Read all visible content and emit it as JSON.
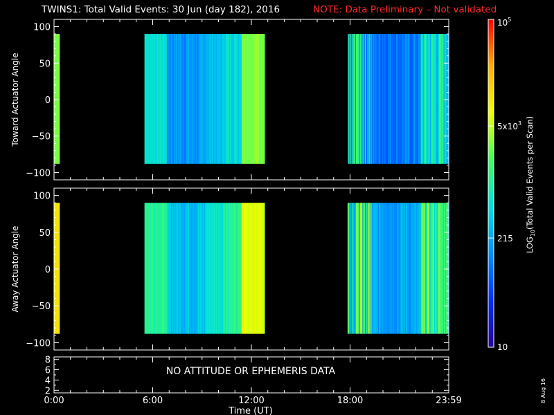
{
  "title": {
    "main": "TWINS1: Total Valid Events: 30 Jun (day 182), 2016",
    "note": "NOTE: Data Preliminary – Not validated",
    "note_color": "#ff2a2a"
  },
  "message": "NO ATTITUDE OR EPHEMERIS DATA",
  "footer_date": "8 Aug 16",
  "colors": {
    "background": "#000000",
    "axes": "#ffffff",
    "note": "#ff2a2a"
  },
  "chart_data": [
    {
      "type": "heatmap",
      "panel": "toward",
      "ylabel": "Toward Actuator Angle",
      "ylim": [
        -110,
        110
      ],
      "yticks": [
        100,
        50,
        0,
        -50,
        -100
      ],
      "ytick_labels": [
        "100",
        "50",
        "0",
        "−50",
        "−100"
      ],
      "angle_range": [
        -88,
        90
      ],
      "data_blocks": [
        {
          "start_hour": 0.0,
          "end_hour": 0.33,
          "level": 0.62
        },
        {
          "start_hour": 5.5,
          "end_hour": 12.8,
          "pattern": "mid_day"
        },
        {
          "start_hour": 17.85,
          "end_hour": 24.0,
          "pattern": "evening"
        }
      ]
    },
    {
      "type": "heatmap",
      "panel": "away",
      "ylabel": "Away Actuator Angle",
      "ylim": [
        -110,
        110
      ],
      "yticks": [
        100,
        50,
        0,
        -50,
        -100
      ],
      "ytick_labels": [
        "100",
        "50",
        "0",
        "−50",
        "−100"
      ],
      "angle_range": [
        -88,
        90
      ],
      "data_blocks": [
        {
          "start_hour": 0.0,
          "end_hour": 0.33,
          "level": 0.76
        },
        {
          "start_hour": 5.5,
          "end_hour": 12.8,
          "pattern": "mid_day"
        },
        {
          "start_hour": 17.85,
          "end_hour": 24.0,
          "pattern": "evening"
        }
      ]
    },
    {
      "type": "line",
      "panel": "ephemeris",
      "ylim": [
        1.5,
        8.5
      ],
      "yticks": [
        8,
        6,
        4,
        2
      ],
      "ytick_labels": [
        "8",
        "6",
        "4",
        "2"
      ],
      "series": []
    }
  ],
  "x_axis": {
    "label": "Time (UT)",
    "xlim": [
      0,
      24
    ],
    "ticks": [
      0,
      6,
      12,
      18,
      24
    ],
    "tick_labels": [
      "0:00",
      "6:00",
      "12:00",
      "18:00",
      "23:59"
    ]
  },
  "colorbar": {
    "label_prefix": "LOG",
    "label_sub": "10",
    "label_suffix": "(Total Valid Events per Scan)",
    "scale": "log",
    "range": [
      10,
      100000
    ],
    "ticks": [
      {
        "value": 10,
        "label": "10",
        "exp": "",
        "prefix": ""
      },
      {
        "value": 215,
        "label": "215",
        "exp": "",
        "prefix": ""
      },
      {
        "value": 5000,
        "label": "5x10",
        "exp": "3",
        "prefix": ""
      },
      {
        "value": 100000,
        "label": "10",
        "exp": "5",
        "prefix": ""
      }
    ],
    "colormap": [
      "#2800a0",
      "#0030ff",
      "#0090ff",
      "#00e0e0",
      "#40ff60",
      "#f0ff00",
      "#ffb000",
      "#ff0000"
    ]
  }
}
